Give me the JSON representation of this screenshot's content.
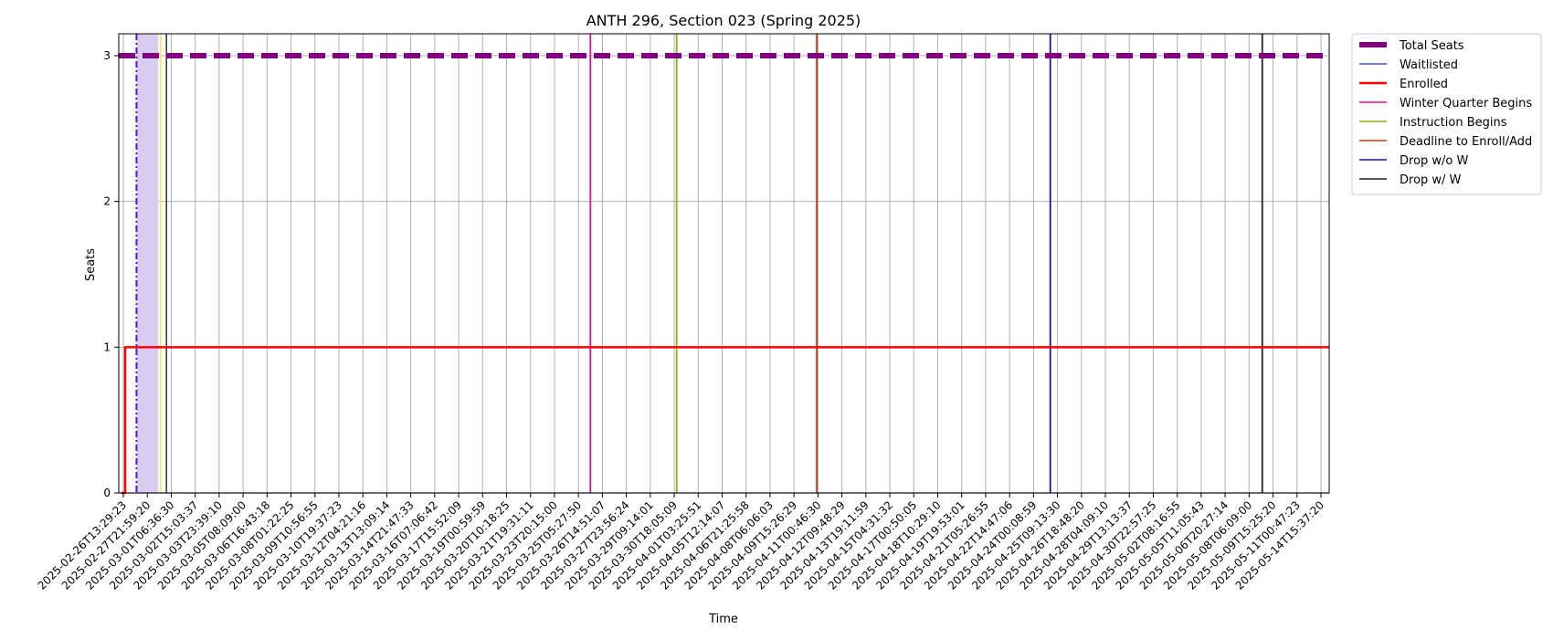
{
  "chart_data": {
    "type": "line",
    "title": "ANTH 296, Section 023 (Spring 2025)",
    "xlabel": "Time",
    "ylabel": "Seats",
    "ylim": [
      0,
      3.15
    ],
    "yticks": [
      0,
      1,
      2,
      3
    ],
    "grid": true,
    "legend_position": "outside-top-right",
    "x": [
      "2025-02-26T13:29:23",
      "2025-02-27T21:59:20",
      "2025-03-01T06:36:30",
      "2025-03-02T15:03:37",
      "2025-03-03T23:39:10",
      "2025-03-05T08:09:00",
      "2025-03-06T16:43:18",
      "2025-03-08T01:22:25",
      "2025-03-09T10:56:55",
      "2025-03-10T19:37:23",
      "2025-03-12T04:21:16",
      "2025-03-13T13:09:14",
      "2025-03-14T21:47:33",
      "2025-03-16T07:06:42",
      "2025-03-17T15:52:09",
      "2025-03-19T00:59:59",
      "2025-03-20T10:18:25",
      "2025-03-21T19:31:11",
      "2025-03-23T20:15:00",
      "2025-03-25T05:27:50",
      "2025-03-26T14:51:07",
      "2025-03-27T23:56:24",
      "2025-03-29T09:14:01",
      "2025-03-30T18:05:09",
      "2025-04-01T03:25:51",
      "2025-04-05T12:14:07",
      "2025-04-06T21:25:58",
      "2025-04-08T06:06:03",
      "2025-04-09T15:26:29",
      "2025-04-11T00:46:30",
      "2025-04-12T09:48:29",
      "2025-04-13T19:11:59",
      "2025-04-15T04:31:32",
      "2025-04-17T00:50:05",
      "2025-04-18T10:29:10",
      "2025-04-19T19:53:01",
      "2025-04-21T05:26:55",
      "2025-04-22T14:47:06",
      "2025-04-24T00:08:59",
      "2025-04-25T09:13:30",
      "2025-04-26T18:48:20",
      "2025-04-28T04:09:10",
      "2025-04-29T13:13:37",
      "2025-04-30T22:57:25",
      "2025-05-02T08:16:55",
      "2025-05-05T11:05:43",
      "2025-05-06T20:27:14",
      "2025-05-08T06:09:00",
      "2025-05-09T15:25:20",
      "2025-05-11T00:47:23",
      "2025-05-14T15:37:20"
    ],
    "series": [
      {
        "name": "Total Seats",
        "color": "#800080",
        "style": "dashed-thick",
        "values": [
          3,
          3,
          3,
          3,
          3,
          3,
          3,
          3,
          3,
          3,
          3,
          3,
          3,
          3,
          3,
          3,
          3,
          3,
          3,
          3,
          3,
          3,
          3,
          3,
          3,
          3,
          3,
          3,
          3,
          3,
          3,
          3,
          3,
          3,
          3,
          3,
          3,
          3,
          3,
          3,
          3,
          3,
          3,
          3,
          3,
          3,
          3,
          3,
          3,
          3,
          3
        ]
      },
      {
        "name": "Waitlisted",
        "color": "#4055e6",
        "style": "solid-thin",
        "values": [
          0,
          0,
          0,
          0,
          0,
          0,
          0,
          0,
          0,
          0,
          0,
          0,
          0,
          0,
          0,
          0,
          0,
          0,
          0,
          0,
          0,
          0,
          0,
          0,
          0,
          0,
          0,
          0,
          0,
          0,
          0,
          0,
          0,
          0,
          0,
          0,
          0,
          0,
          0,
          0,
          0,
          0,
          0,
          0,
          0,
          0,
          0,
          0,
          0,
          0,
          0
        ]
      },
      {
        "name": "Enrolled",
        "color": "#ff0000",
        "style": "solid-thick",
        "values": [
          1,
          1,
          1,
          1,
          1,
          1,
          1,
          1,
          1,
          1,
          1,
          1,
          1,
          1,
          1,
          1,
          1,
          1,
          1,
          1,
          1,
          1,
          1,
          1,
          1,
          1,
          1,
          1,
          1,
          1,
          1,
          1,
          1,
          1,
          1,
          1,
          1,
          1,
          1,
          1,
          1,
          1,
          1,
          1,
          1,
          1,
          1,
          1,
          1,
          1,
          1
        ]
      }
    ],
    "events": [
      {
        "name": "Winter Quarter Begins",
        "color": "#e0109c",
        "x_index": 19.5
      },
      {
        "name": "Instruction Begins",
        "color": "#88b314",
        "x_index": 23.1
      },
      {
        "name": "Deadline to Enroll/Add",
        "color": "#d13b0d",
        "x_index": 28.95
      },
      {
        "name": "Drop w/o W",
        "color": "#1b1496",
        "x_index": 38.7
      },
      {
        "name": "Drop w/ W",
        "color": "#152447",
        "x_index": 47.55
      }
    ],
    "extra_marks": {
      "shaded_band": {
        "from_index": 0.55,
        "to_index": 1.45,
        "color": "#d9ccf2"
      },
      "dashdot_line": {
        "x_index": 0.55,
        "color": "#5a13d6"
      },
      "yellow_line": {
        "x_index": 1.55,
        "color": "#f5e86b"
      },
      "dark_line": {
        "x_index": 1.8,
        "color": "#2b3a1f"
      }
    }
  }
}
